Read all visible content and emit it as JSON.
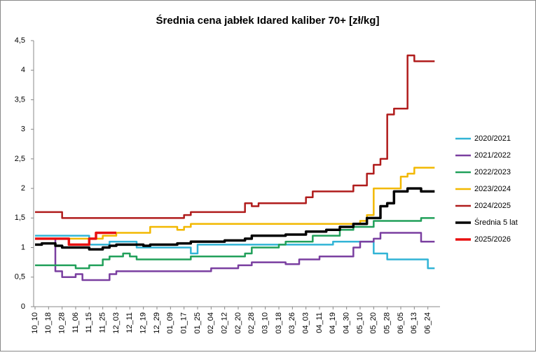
{
  "chart_data": {
    "type": "line",
    "title": "Średnia cena jabłek Idared kaliber 70+ [zł/kg]",
    "categories": [
      "10_10",
      null,
      "10_18",
      null,
      "10_28",
      null,
      "11_06",
      null,
      "11_15",
      null,
      "11_25",
      null,
      "12_03",
      null,
      "12_11",
      null,
      "12_19",
      null,
      "12_29",
      null,
      "01_09",
      null,
      "01_17",
      null,
      "01_25",
      null,
      "02_04",
      null,
      "02_12",
      null,
      "02_20",
      null,
      "02_28",
      null,
      "03_10",
      null,
      "03_18",
      null,
      "03_26",
      null,
      "04_03",
      null,
      "04_11",
      null,
      "04_19",
      null,
      "04_30",
      null,
      "05_10",
      null,
      "05_20",
      null,
      "05_28",
      null,
      "06_05",
      null,
      "06_13",
      null,
      "06_24",
      null
    ],
    "ylim": [
      0,
      4.5
    ],
    "yticks": [
      0,
      {
        "value": 0.5,
        "label": "0,5"
      },
      1,
      {
        "value": 1.5,
        "label": "1,5"
      },
      2,
      {
        "value": 2.5,
        "label": "2,5"
      },
      3,
      {
        "value": 3.5,
        "label": "3,5"
      },
      4,
      {
        "value": 4.5,
        "label": "4,5"
      }
    ],
    "legend": "right",
    "series": [
      {
        "name": "2020/2021",
        "color": "#31b4d6",
        "width": 2.5,
        "values": [
          1.2,
          1.2,
          1.2,
          1.2,
          1.2,
          1.2,
          1.2,
          1.2,
          1.05,
          1.05,
          1.05,
          1.1,
          1.1,
          1.1,
          1.1,
          1.0,
          1.0,
          1.0,
          1.0,
          1.0,
          1.0,
          1.0,
          1.0,
          0.9,
          1.05,
          1.05,
          1.05,
          1.05,
          1.05,
          1.05,
          1.05,
          1.05,
          1.05,
          1.05,
          1.05,
          1.05,
          1.05,
          1.05,
          1.05,
          1.05,
          1.05,
          1.05,
          1.05,
          1.05,
          1.1,
          1.1,
          1.1,
          1.1,
          1.1,
          1.1,
          0.9,
          0.9,
          0.8,
          0.8,
          0.8,
          0.8,
          0.8,
          0.8,
          0.65,
          0.65
        ]
      },
      {
        "name": "2021/2022",
        "color": "#7a3fa0",
        "width": 2.5,
        "values": [
          1.15,
          1.15,
          1.15,
          0.6,
          0.5,
          0.5,
          0.55,
          0.45,
          0.45,
          0.45,
          0.45,
          0.55,
          0.6,
          0.6,
          0.6,
          0.6,
          0.6,
          0.6,
          0.6,
          0.6,
          0.6,
          0.6,
          0.6,
          0.6,
          0.6,
          0.6,
          0.65,
          0.65,
          0.65,
          0.65,
          0.7,
          0.7,
          0.75,
          0.75,
          0.75,
          0.75,
          0.75,
          0.72,
          0.72,
          0.8,
          0.8,
          0.8,
          0.85,
          0.85,
          0.85,
          0.85,
          0.85,
          1.0,
          1.1,
          1.1,
          1.15,
          1.25,
          1.25,
          1.25,
          1.25,
          1.25,
          1.25,
          1.1,
          1.1,
          1.1
        ]
      },
      {
        "name": "2022/2023",
        "color": "#21a05a",
        "width": 2.5,
        "values": [
          0.7,
          0.7,
          0.7,
          0.7,
          0.7,
          0.7,
          0.65,
          0.65,
          0.7,
          0.7,
          0.8,
          0.85,
          0.85,
          0.9,
          0.85,
          0.8,
          0.8,
          0.8,
          0.8,
          0.8,
          0.8,
          0.8,
          0.8,
          0.85,
          0.85,
          0.85,
          0.85,
          0.85,
          0.85,
          0.85,
          0.85,
          0.9,
          1.0,
          1.0,
          1.0,
          1.0,
          1.05,
          1.1,
          1.1,
          1.1,
          1.1,
          1.2,
          1.2,
          1.2,
          1.2,
          1.3,
          1.3,
          1.35,
          1.35,
          1.35,
          1.45,
          1.45,
          1.45,
          1.45,
          1.45,
          1.45,
          1.45,
          1.5,
          1.5,
          1.5
        ]
      },
      {
        "name": "2023/2024",
        "color": "#f2b800",
        "width": 2.5,
        "values": [
          1.15,
          1.15,
          1.15,
          1.15,
          1.15,
          1.15,
          1.15,
          1.15,
          1.15,
          1.15,
          1.2,
          1.2,
          1.25,
          1.25,
          1.25,
          1.25,
          1.25,
          1.35,
          1.35,
          1.35,
          1.35,
          1.3,
          1.35,
          1.4,
          1.4,
          1.4,
          1.4,
          1.4,
          1.4,
          1.4,
          1.4,
          1.4,
          1.4,
          1.4,
          1.4,
          1.4,
          1.4,
          1.4,
          1.4,
          1.4,
          1.4,
          1.4,
          1.4,
          1.4,
          1.4,
          1.4,
          1.4,
          1.4,
          1.45,
          1.55,
          2.0,
          2.0,
          2.0,
          2.0,
          2.2,
          2.25,
          2.35,
          2.35,
          2.35,
          2.35
        ]
      },
      {
        "name": "2024/2025",
        "color": "#b01c1c",
        "width": 2.5,
        "values": [
          1.6,
          1.6,
          1.6,
          1.6,
          1.5,
          1.5,
          1.5,
          1.5,
          1.5,
          1.5,
          1.5,
          1.5,
          1.5,
          1.5,
          1.5,
          1.5,
          1.5,
          1.5,
          1.5,
          1.5,
          1.5,
          1.5,
          1.55,
          1.6,
          1.6,
          1.6,
          1.6,
          1.6,
          1.6,
          1.6,
          1.6,
          1.75,
          1.7,
          1.75,
          1.75,
          1.75,
          1.75,
          1.75,
          1.75,
          1.75,
          1.85,
          1.95,
          1.95,
          1.95,
          1.95,
          1.95,
          1.95,
          2.05,
          2.05,
          2.25,
          2.4,
          2.5,
          3.25,
          3.35,
          3.35,
          4.25,
          4.15,
          4.15,
          4.15,
          4.15
        ]
      },
      {
        "name": "Średnia 5 lat",
        "color": "#000000",
        "width": 3.5,
        "values": [
          1.05,
          1.07,
          1.07,
          1.03,
          1.0,
          1.0,
          1.0,
          1.0,
          0.97,
          0.97,
          1.0,
          1.03,
          1.05,
          1.05,
          1.05,
          1.05,
          1.03,
          1.05,
          1.05,
          1.05,
          1.05,
          1.07,
          1.07,
          1.1,
          1.1,
          1.1,
          1.1,
          1.1,
          1.12,
          1.12,
          1.12,
          1.15,
          1.2,
          1.2,
          1.2,
          1.2,
          1.2,
          1.22,
          1.22,
          1.22,
          1.27,
          1.27,
          1.27,
          1.3,
          1.3,
          1.35,
          1.35,
          1.4,
          1.4,
          1.5,
          1.5,
          1.7,
          1.75,
          1.95,
          1.95,
          2.0,
          2.0,
          1.95,
          1.95,
          1.95
        ]
      },
      {
        "name": "2025/2026",
        "color": "#e81010",
        "width": 3.5,
        "values": [
          1.15,
          1.15,
          1.15,
          1.15,
          1.15,
          1.05,
          1.05,
          1.05,
          1.15,
          1.25,
          1.25,
          1.25,
          1.25,
          null,
          null,
          null,
          null,
          null,
          null,
          null,
          null,
          null,
          null,
          null,
          null,
          null,
          null,
          null,
          null,
          null,
          null,
          null,
          null,
          null,
          null,
          null,
          null,
          null,
          null,
          null,
          null,
          null,
          null,
          null,
          null,
          null,
          null,
          null,
          null,
          null,
          null,
          null,
          null,
          null,
          null,
          null,
          null,
          null,
          null,
          null
        ]
      }
    ]
  }
}
